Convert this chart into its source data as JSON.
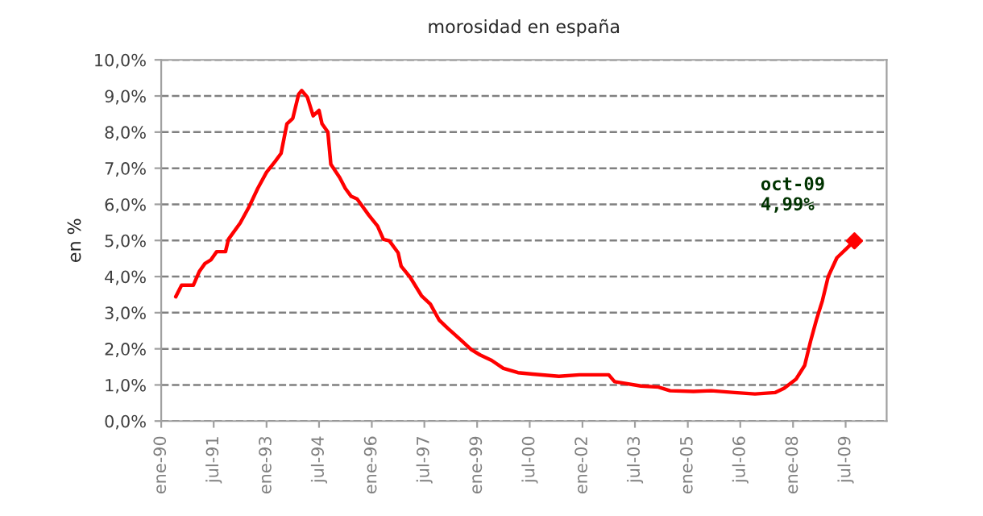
{
  "chart_data": {
    "type": "line",
    "title": "morosidad en españa",
    "ylabel": "en %",
    "series": [
      {
        "color": "#ff0000",
        "x": [
          "1990-06",
          "1990-08",
          "1990-12",
          "1991-02",
          "1991-04",
          "1991-06",
          "1991-08",
          "1991-11",
          "1991-12",
          "1992-04",
          "1992-07",
          "1992-10",
          "1993-01",
          "1993-04",
          "1993-06",
          "1993-08",
          "1993-10",
          "1993-12",
          "1994-01",
          "1994-03",
          "1994-05",
          "1994-07",
          "1994-08",
          "1994-10",
          "1994-11",
          "1995-02",
          "1995-04",
          "1995-06",
          "1995-08",
          "1995-12",
          "1996-03",
          "1996-05",
          "1996-07",
          "1996-10",
          "1996-11",
          "1997-02",
          "1997-06",
          "1997-09",
          "1997-12",
          "1998-03",
          "1998-07",
          "1998-11",
          "1999-02",
          "1999-06",
          "1999-10",
          "2000-03",
          "2000-08",
          "2001-05",
          "2001-12",
          "2002-10",
          "2002-12",
          "2003-09",
          "2004-03",
          "2004-07",
          "2005-03",
          "2005-09",
          "2006-05",
          "2006-12",
          "2007-07",
          "2007-10",
          "2008-02",
          "2008-05",
          "2008-07",
          "2008-09",
          "2008-11",
          "2009-01",
          "2009-04",
          "2009-07",
          "2009-10"
        ],
        "values": [
          3.44,
          3.76,
          3.76,
          4.14,
          4.36,
          4.46,
          4.69,
          4.69,
          5.03,
          5.48,
          5.92,
          6.44,
          6.89,
          7.19,
          7.41,
          8.23,
          8.38,
          9.05,
          9.15,
          8.97,
          8.45,
          8.6,
          8.23,
          8.0,
          7.11,
          6.74,
          6.44,
          6.22,
          6.15,
          5.7,
          5.4,
          5.03,
          4.99,
          4.66,
          4.29,
          3.99,
          3.47,
          3.24,
          2.8,
          2.57,
          2.28,
          1.98,
          1.83,
          1.68,
          1.46,
          1.34,
          1.3,
          1.24,
          1.28,
          1.28,
          1.09,
          0.97,
          0.94,
          0.84,
          0.82,
          0.84,
          0.79,
          0.75,
          0.79,
          0.91,
          1.16,
          1.54,
          2.21,
          2.81,
          3.33,
          4.0,
          4.52,
          4.75,
          4.99
        ]
      },
      {
        "type": "scatter",
        "color": "#ff0000",
        "marker": "diamond",
        "x": [
          "2009-10"
        ],
        "values": [
          4.99
        ]
      }
    ],
    "annotations": [
      {
        "text": "oct-09\n4,99%",
        "x": "2009-10",
        "y": 4.99
      }
    ],
    "xlim": [
      "1990-01",
      "2010-09"
    ],
    "xticks": [
      {
        "value": "1990-01",
        "label": "ene-90"
      },
      {
        "value": "1991-07",
        "label": "jul-91"
      },
      {
        "value": "1993-01",
        "label": "ene-93"
      },
      {
        "value": "1994-07",
        "label": "jul-94"
      },
      {
        "value": "1996-01",
        "label": "ene-96"
      },
      {
        "value": "1997-07",
        "label": "jul-97"
      },
      {
        "value": "1999-01",
        "label": "ene-99"
      },
      {
        "value": "2000-07",
        "label": "jul-00"
      },
      {
        "value": "2002-01",
        "label": "ene-02"
      },
      {
        "value": "2003-07",
        "label": "jul-03"
      },
      {
        "value": "2005-01",
        "label": "ene-05"
      },
      {
        "value": "2006-07",
        "label": "jul-06"
      },
      {
        "value": "2008-01",
        "label": "ene-08"
      },
      {
        "value": "2009-07",
        "label": "jul-09"
      }
    ],
    "ylim": [
      0,
      10
    ],
    "yticks": [
      {
        "value": 0,
        "label": "0,0%"
      },
      {
        "value": 1,
        "label": "1,0%"
      },
      {
        "value": 2,
        "label": "2,0%"
      },
      {
        "value": 3,
        "label": "3,0%"
      },
      {
        "value": 4,
        "label": "4,0%"
      },
      {
        "value": 5,
        "label": "5,0%"
      },
      {
        "value": 6,
        "label": "6,0%"
      },
      {
        "value": 7,
        "label": "7,0%"
      },
      {
        "value": 8,
        "label": "8,0%"
      },
      {
        "value": 9,
        "label": "9,0%"
      },
      {
        "value": 10,
        "label": "10,0%"
      }
    ],
    "grid": "y",
    "line_style": "solid",
    "legend": false
  }
}
